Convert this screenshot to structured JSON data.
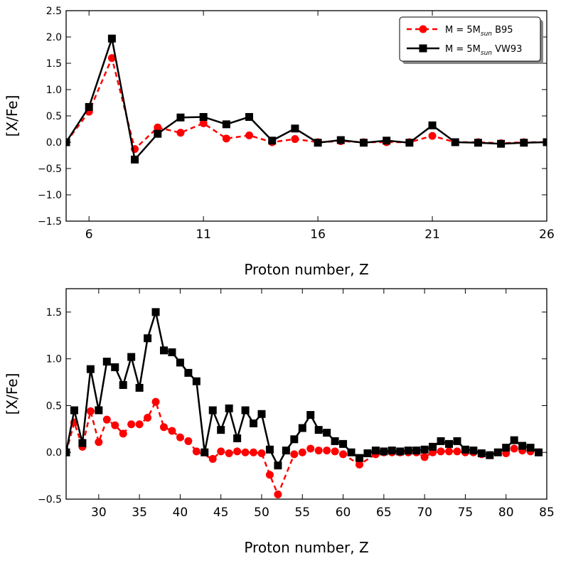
{
  "chart_data": [
    {
      "type": "line",
      "xlabel": "Proton number, Z",
      "ylabel": "[X/Fe]",
      "xlim": [
        5,
        26
      ],
      "ylim": [
        -1.5,
        2.5
      ],
      "xticks": [
        6,
        11,
        16,
        21,
        26
      ],
      "xtick_labels": [
        "6",
        "11",
        "16",
        "21",
        "26"
      ],
      "yticks": [
        -1.5,
        -1.0,
        -0.5,
        0.0,
        0.5,
        1.0,
        1.5,
        2.0,
        2.5
      ],
      "ytick_labels": [
        "−1.5",
        "−1.0",
        "−0.5",
        "0.0",
        "0.5",
        "1.0",
        "1.5",
        "2.0",
        "2.5"
      ],
      "legend": {
        "position": "top-right"
      },
      "series": [
        {
          "name": "M = 5M",
          "name_sub": "sun",
          "name_suffix": " B95",
          "color": "#ff0000",
          "linestyle": "dashed",
          "marker": "circle",
          "x": [
            5,
            6,
            7,
            8,
            9,
            10,
            11,
            12,
            13,
            14,
            15,
            16,
            17,
            18,
            19,
            20,
            21,
            22,
            23,
            24,
            25,
            26
          ],
          "y": [
            0.0,
            0.58,
            1.6,
            -0.13,
            0.28,
            0.18,
            0.36,
            0.07,
            0.13,
            0.0,
            0.06,
            0.0,
            0.02,
            0.0,
            0.0,
            0.0,
            0.12,
            0.0,
            0.0,
            -0.02,
            0.0,
            0.0
          ]
        },
        {
          "name": "M = 5M",
          "name_sub": "sun",
          "name_suffix": " VW93",
          "color": "#000000",
          "linestyle": "solid",
          "marker": "square",
          "x": [
            5,
            6,
            7,
            8,
            9,
            10,
            11,
            12,
            13,
            14,
            15,
            16,
            17,
            18,
            19,
            20,
            21,
            22,
            23,
            24,
            25,
            26
          ],
          "y": [
            0.0,
            0.67,
            1.97,
            -0.33,
            0.16,
            0.47,
            0.48,
            0.34,
            0.48,
            0.03,
            0.26,
            -0.01,
            0.04,
            -0.01,
            0.03,
            -0.01,
            0.32,
            0.0,
            -0.01,
            -0.03,
            -0.01,
            0.0
          ]
        }
      ]
    },
    {
      "type": "line",
      "xlabel": "Proton number, Z",
      "ylabel": "[X/Fe]",
      "xlim": [
        26,
        85
      ],
      "ylim": [
        -0.5,
        1.75
      ],
      "xticks": [
        30,
        35,
        40,
        45,
        50,
        55,
        60,
        65,
        70,
        75,
        80,
        85
      ],
      "xtick_labels": [
        "30",
        "35",
        "40",
        "45",
        "50",
        "55",
        "60",
        "65",
        "70",
        "75",
        "80",
        "85"
      ],
      "yticks": [
        -0.5,
        0.0,
        0.5,
        1.0,
        1.5
      ],
      "ytick_labels": [
        "−0.5",
        "0.0",
        "0.5",
        "1.0",
        "1.5"
      ],
      "series": [
        {
          "name": "M = 5M",
          "name_sub": "sun",
          "name_suffix": " B95",
          "color": "#ff0000",
          "linestyle": "dashed",
          "marker": "circle",
          "x": [
            26,
            27,
            28,
            29,
            30,
            31,
            32,
            33,
            34,
            35,
            36,
            37,
            38,
            39,
            40,
            41,
            42,
            44,
            45,
            46,
            47,
            48,
            49,
            50,
            51,
            52,
            54,
            55,
            56,
            57,
            58,
            59,
            60,
            62,
            64,
            65,
            66,
            67,
            68,
            69,
            70,
            71,
            72,
            73,
            74,
            75,
            76,
            77,
            78,
            80,
            81,
            82,
            83,
            84
          ],
          "y": [
            0.0,
            0.32,
            0.06,
            0.44,
            0.11,
            0.35,
            0.29,
            0.2,
            0.3,
            0.3,
            0.37,
            0.54,
            0.27,
            0.23,
            0.16,
            0.12,
            0.01,
            -0.07,
            0.01,
            -0.01,
            0.01,
            0.0,
            0.0,
            -0.01,
            -0.24,
            -0.45,
            -0.02,
            0.0,
            0.04,
            0.02,
            0.02,
            0.01,
            -0.02,
            -0.13,
            -0.02,
            0.0,
            0.0,
            0.0,
            0.0,
            0.0,
            -0.05,
            0.0,
            0.01,
            0.01,
            0.01,
            0.0,
            0.0,
            -0.02,
            -0.03,
            -0.01,
            0.04,
            0.02,
            0.01,
            0.0
          ]
        },
        {
          "name": "M = 5M",
          "name_sub": "sun",
          "name_suffix": " VW93",
          "color": "#000000",
          "linestyle": "solid",
          "marker": "square",
          "x": [
            26,
            27,
            28,
            29,
            30,
            31,
            32,
            33,
            34,
            35,
            36,
            37,
            38,
            39,
            40,
            41,
            42,
            43,
            44,
            45,
            46,
            47,
            48,
            49,
            50,
            51,
            52,
            53,
            54,
            55,
            56,
            57,
            58,
            59,
            60,
            61,
            62,
            63,
            64,
            65,
            66,
            67,
            68,
            69,
            70,
            71,
            72,
            73,
            74,
            75,
            76,
            77,
            78,
            79,
            80,
            81,
            82,
            83,
            84
          ],
          "y": [
            0.0,
            0.45,
            0.1,
            0.89,
            0.45,
            0.97,
            0.91,
            0.72,
            1.02,
            0.69,
            1.22,
            1.5,
            1.09,
            1.07,
            0.96,
            0.85,
            0.76,
            0.0,
            0.45,
            0.24,
            0.47,
            0.15,
            0.45,
            0.31,
            0.41,
            0.03,
            -0.14,
            0.02,
            0.14,
            0.26,
            0.4,
            0.24,
            0.21,
            0.12,
            0.09,
            0.0,
            -0.06,
            -0.01,
            0.02,
            0.01,
            0.02,
            0.01,
            0.02,
            0.02,
            0.03,
            0.06,
            0.12,
            0.09,
            0.12,
            0.03,
            0.02,
            -0.01,
            -0.03,
            0.0,
            0.05,
            0.13,
            0.07,
            0.05,
            0.0
          ]
        }
      ]
    }
  ]
}
